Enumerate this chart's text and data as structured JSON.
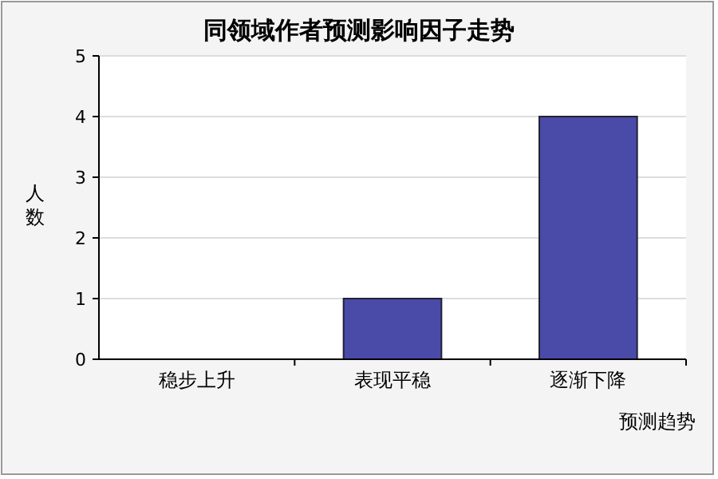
{
  "chart_data": {
    "type": "bar",
    "title": "同领域作者预测影响因子走势",
    "xlabel": "预测趋势",
    "ylabel": "人数",
    "categories": [
      "稳步上升",
      "表现平稳",
      "逐渐下降"
    ],
    "values": [
      0,
      1,
      4
    ],
    "color": "#4a4aa8",
    "ylim": [
      0,
      5
    ],
    "yticks": [
      0,
      1,
      2,
      3,
      4,
      5
    ],
    "grid": "y"
  }
}
